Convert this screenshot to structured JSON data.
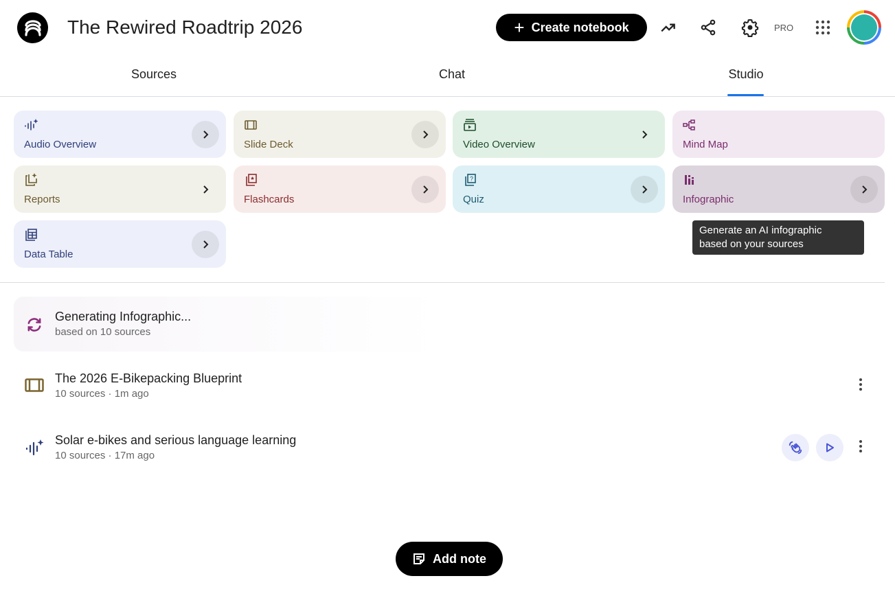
{
  "header": {
    "title": "The Rewired Roadtrip 2026",
    "create_label": "Create notebook",
    "pro_label": "PRO"
  },
  "tabs": [
    {
      "label": "Sources"
    },
    {
      "label": "Chat"
    },
    {
      "label": "Studio",
      "active": true
    }
  ],
  "studio_cards": [
    {
      "label": "Audio Overview",
      "icon": "audio-sparkle-icon",
      "bg": "#edeffa",
      "color": "#2f3f7a",
      "arrow_bg": true
    },
    {
      "label": "Slide Deck",
      "icon": "slides-icon",
      "bg": "#f2f1e9",
      "color": "#6b5a2f",
      "arrow_bg": true
    },
    {
      "label": "Video Overview",
      "icon": "video-icon",
      "bg": "#e1f0e5",
      "color": "#1e4d2b",
      "arrow_bg": false
    },
    {
      "label": "Mind Map",
      "icon": "mind-map-icon",
      "bg": "#f2e8f1",
      "color": "#7a2e6e",
      "arrow": false
    },
    {
      "label": "Reports",
      "icon": "reports-icon",
      "bg": "#f2f1e9",
      "color": "#6b5a2f",
      "arrow_bg": false
    },
    {
      "label": "Flashcards",
      "icon": "flashcards-icon",
      "bg": "#f7ebea",
      "color": "#8a2e2e",
      "arrow_bg": true
    },
    {
      "label": "Quiz",
      "icon": "quiz-icon",
      "bg": "#ddf0f5",
      "color": "#1d5a72",
      "arrow_bg": true
    },
    {
      "label": "Infographic",
      "icon": "infographic-icon",
      "bg": "#ddd5dd",
      "color": "#7a2e6e",
      "arrow_bg": true
    },
    {
      "label": "Data Table",
      "icon": "table-icon",
      "bg": "#edeffa",
      "color": "#2f3f7a",
      "arrow_bg": true
    }
  ],
  "tooltip": {
    "line1": "Generate an AI infographic",
    "line2": "based on your sources"
  },
  "outputs": [
    {
      "title": "Generating Infographic...",
      "subtitle": "based on 10 sources",
      "icon": "sync-icon"
    },
    {
      "title": "The 2026 E-Bikepacking Blueprint",
      "subtitle": "10 sources · 1m ago",
      "icon": "slides-icon"
    },
    {
      "title": "Solar e-bikes and serious language learning",
      "subtitle": "10 sources · 17m ago",
      "icon": "audio-sparkle-icon"
    }
  ],
  "add_note_label": "Add note"
}
